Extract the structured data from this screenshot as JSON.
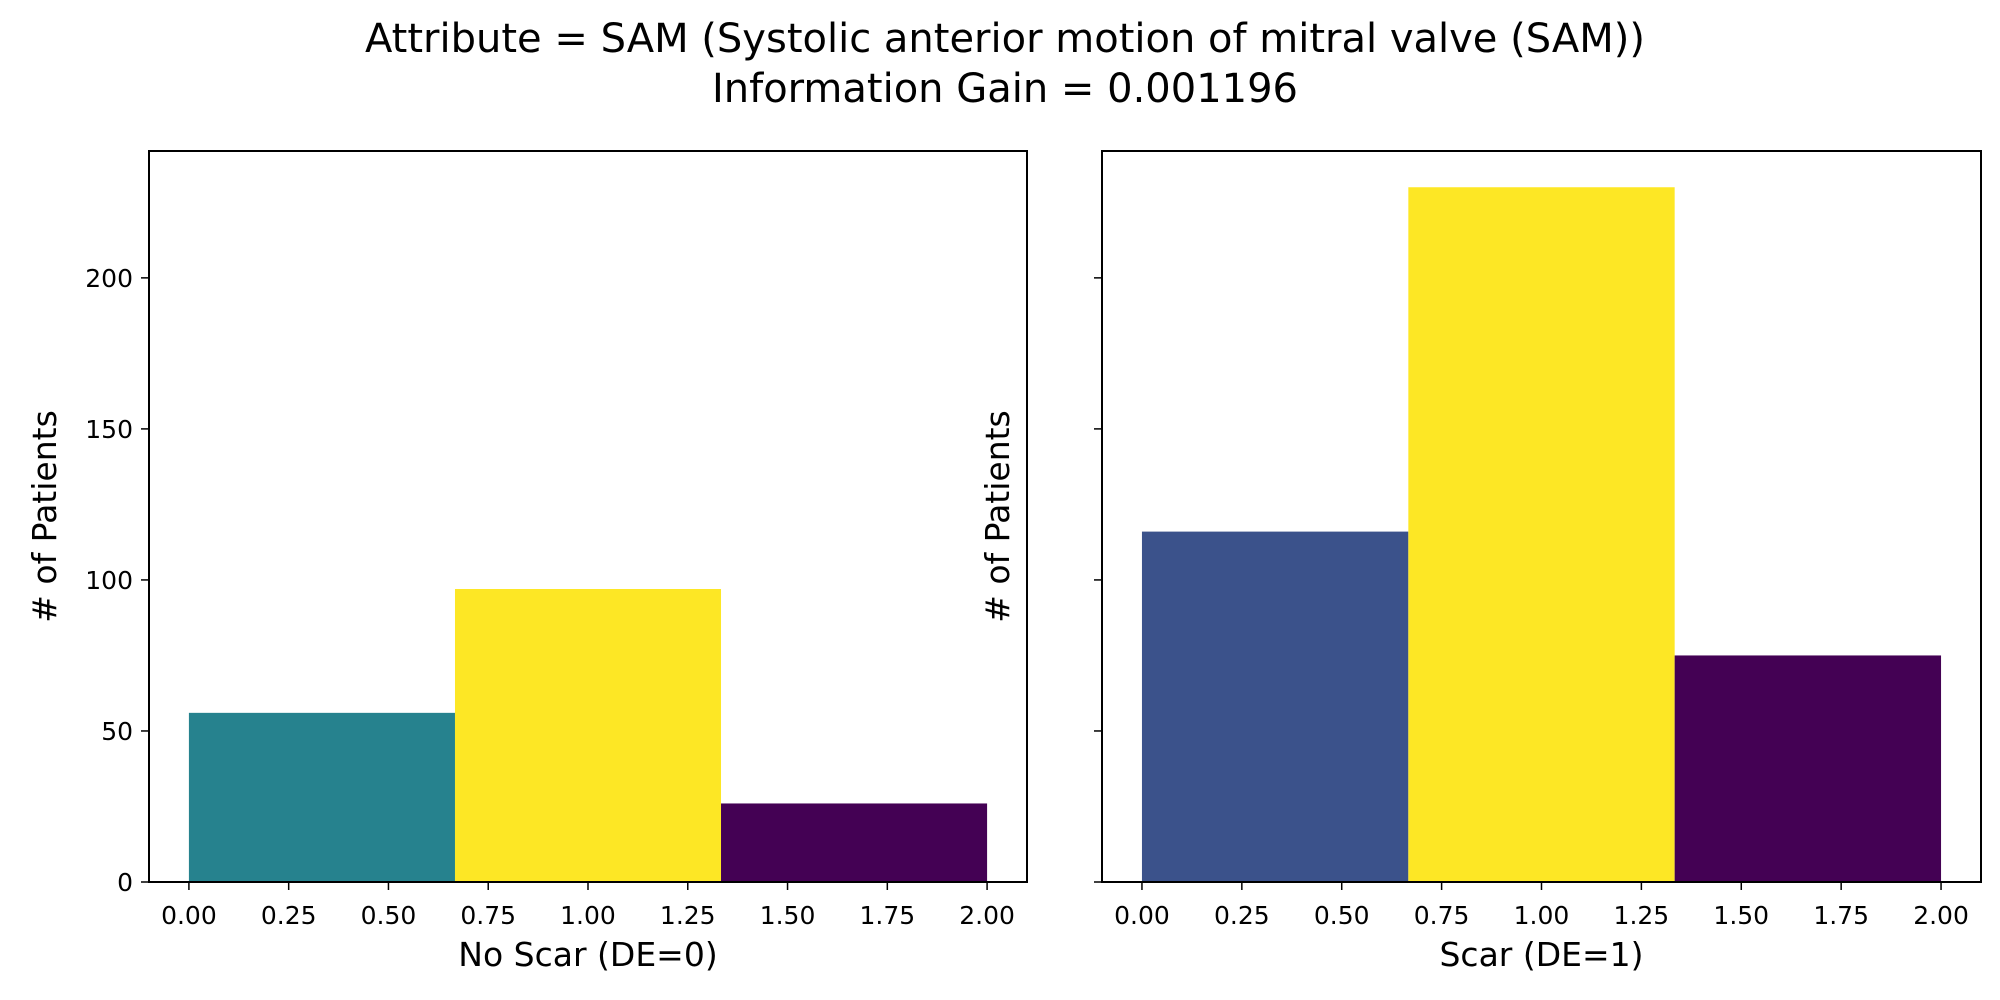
{
  "figure": {
    "title_line1": "Attribute = SAM (Systolic anterior motion of mitral valve (SAM))",
    "title_line2": "Information Gain = 0.001196"
  },
  "chart_data": [
    {
      "type": "bar",
      "title": "",
      "xlabel": "No Scar (DE=0)",
      "ylabel": "# of Patients",
      "bins": [
        [
          0.0,
          0.6667
        ],
        [
          0.6667,
          1.3333
        ],
        [
          1.3333,
          2.0
        ]
      ],
      "values": [
        56,
        97,
        26
      ],
      "colors": [
        "#26828e",
        "#fde725",
        "#440154"
      ],
      "xlim": [
        -0.1,
        2.1
      ],
      "ylim": [
        0,
        242
      ],
      "xticks": [
        0.0,
        0.25,
        0.5,
        0.75,
        1.0,
        1.25,
        1.5,
        1.75,
        2.0
      ],
      "xtick_labels": [
        "0.00",
        "0.25",
        "0.50",
        "0.75",
        "1.00",
        "1.25",
        "1.50",
        "1.75",
        "2.00"
      ],
      "yticks": [
        0,
        50,
        100,
        150,
        200
      ],
      "ytick_labels": [
        "0",
        "50",
        "100",
        "150",
        "200"
      ],
      "show_ytick_labels": true,
      "grid": false
    },
    {
      "type": "bar",
      "title": "",
      "xlabel": "Scar (DE=1)",
      "ylabel": "# of Patients",
      "bins": [
        [
          0.0,
          0.6667
        ],
        [
          0.6667,
          1.3333
        ],
        [
          1.3333,
          2.0
        ]
      ],
      "values": [
        116,
        230,
        75
      ],
      "colors": [
        "#3b528b",
        "#fde725",
        "#440154"
      ],
      "xlim": [
        -0.1,
        2.1
      ],
      "ylim": [
        0,
        242
      ],
      "xticks": [
        0.0,
        0.25,
        0.5,
        0.75,
        1.0,
        1.25,
        1.5,
        1.75,
        2.0
      ],
      "xtick_labels": [
        "0.00",
        "0.25",
        "0.50",
        "0.75",
        "1.00",
        "1.25",
        "1.50",
        "1.75",
        "2.00"
      ],
      "yticks": [
        0,
        50,
        100,
        150,
        200
      ],
      "ytick_labels": [
        "0",
        "50",
        "100",
        "150",
        "200"
      ],
      "show_ytick_labels": false,
      "grid": false
    }
  ]
}
